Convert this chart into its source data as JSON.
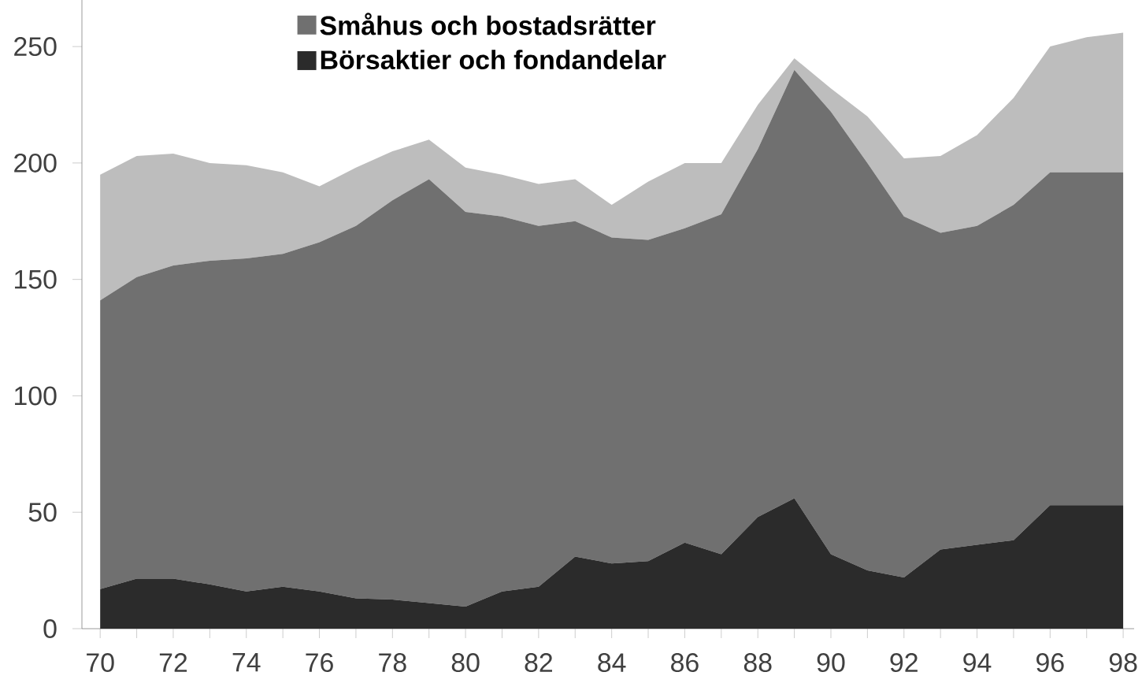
{
  "chart_data": {
    "type": "area",
    "stacked": true,
    "x": [
      70,
      71,
      72,
      73,
      74,
      75,
      76,
      77,
      78,
      79,
      80,
      81,
      82,
      83,
      84,
      85,
      86,
      87,
      88,
      89,
      90,
      91,
      92,
      93,
      94,
      95,
      96,
      97,
      98
    ],
    "series": [
      {
        "name": "Börsaktier och fondandelar",
        "color": "#2b2b2b",
        "values": [
          17,
          21.5,
          21.5,
          19,
          16,
          18,
          16,
          13,
          12.5,
          11,
          9.5,
          16,
          18,
          31,
          28,
          29,
          37,
          32,
          48,
          56,
          32,
          25,
          22,
          34,
          36,
          38,
          53,
          53,
          53
        ]
      },
      {
        "name": "Småhus och bostadsrätter",
        "color": "#707070",
        "values": [
          124,
          129.5,
          134.5,
          139,
          143,
          143,
          150,
          160,
          171.5,
          182,
          169.5,
          161,
          155,
          144,
          140,
          138,
          135,
          146,
          158,
          184,
          190,
          175,
          155,
          136,
          137,
          144,
          143,
          143,
          143
        ]
      },
      {
        "color": "#bdbdbd",
        "values": [
          54,
          52,
          48,
          42,
          40,
          35,
          24,
          25,
          21,
          17,
          19,
          18,
          18,
          18,
          14,
          25,
          28,
          22,
          19,
          5,
          10,
          20,
          25,
          33,
          39,
          46,
          54,
          58,
          60
        ]
      }
    ],
    "xlim": [
      69.5,
      98.3
    ],
    "xticks": [
      70,
      {
        "value": 71,
        "label": null
      },
      72,
      {
        "value": 73,
        "label": null
      },
      74,
      {
        "value": 75,
        "label": null
      },
      76,
      {
        "value": 77,
        "label": null
      },
      78,
      {
        "value": 79,
        "label": null
      },
      80,
      {
        "value": 81,
        "label": null
      },
      82,
      {
        "value": 83,
        "label": null
      },
      84,
      {
        "value": 85,
        "label": null
      },
      86,
      {
        "value": 87,
        "label": null
      },
      88,
      {
        "value": 89,
        "label": null
      },
      90,
      {
        "value": 91,
        "label": null
      },
      92,
      {
        "value": 93,
        "label": null
      },
      94,
      {
        "value": 95,
        "label": null
      },
      96,
      {
        "value": 97,
        "label": null
      },
      98
    ],
    "ylim": [
      0,
      270
    ],
    "yticks": [
      0,
      50,
      100,
      150,
      200,
      250
    ],
    "legend": "top left",
    "grid": false
  }
}
